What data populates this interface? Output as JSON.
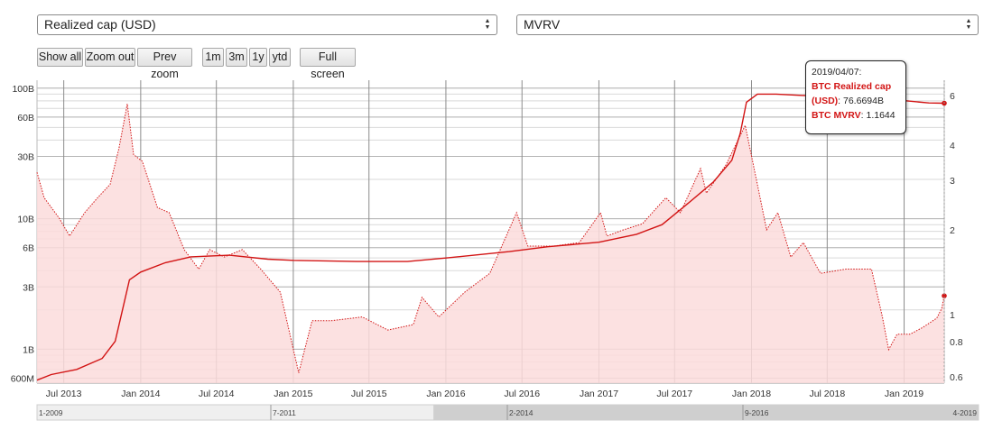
{
  "controls": {
    "left_select": "Realized cap (USD)",
    "right_select": "MVRV",
    "buttons": {
      "show_all": "Show all",
      "zoom_out": "Zoom out",
      "prev_zoom": "Prev zoom",
      "r1m": "1m",
      "r3m": "3m",
      "r1y": "1y",
      "ytd": "ytd",
      "full_screen": "Full screen"
    }
  },
  "tooltip": {
    "date": "2019/04/07:",
    "series1_label": "BTC Realized cap (USD)",
    "series1_value": ": 76.6694B",
    "series2_label": "BTC MVRV",
    "series2_value": ": 1.1644"
  },
  "colors": {
    "line": "#d21414",
    "fill": "#fcdcdc",
    "grid": "#c8c8c8",
    "navigator_selected": "#cfcfcf",
    "navigator_background": "#efefef"
  },
  "chart_data": {
    "type": "line",
    "x_range": [
      "2013-04-28",
      "2019-04-07"
    ],
    "x_ticks": [
      "Jul 2013",
      "Jan 2014",
      "Jul 2014",
      "Jan 2015",
      "Jul 2015",
      "Jan 2016",
      "Jul 2016",
      "Jan 2017",
      "Jul 2017",
      "Jan 2018",
      "Jul 2018",
      "Jan 2019"
    ],
    "x_tick_dates": [
      "2013-07-01",
      "2014-01-01",
      "2014-07-01",
      "2015-01-01",
      "2015-07-01",
      "2016-01-01",
      "2016-07-01",
      "2017-01-01",
      "2017-07-01",
      "2018-01-01",
      "2018-07-01",
      "2019-01-01"
    ],
    "y_left": {
      "scale": "log",
      "ticks": [
        "600M",
        "1B",
        "3B",
        "6B",
        "10B",
        "30B",
        "60B",
        "100B"
      ],
      "tick_values": [
        0.6,
        1,
        3,
        6,
        10,
        30,
        60,
        100
      ],
      "unit": "B",
      "range": [
        0.55,
        115
      ]
    },
    "y_right": {
      "scale": "log",
      "ticks": [
        "0.6",
        "0.8",
        "1",
        "2",
        "3",
        "4",
        "6"
      ],
      "tick_values": [
        0.6,
        0.8,
        1,
        2,
        3,
        4,
        6
      ],
      "range": [
        0.57,
        6.8
      ]
    },
    "series": [
      {
        "name": "BTC Realized cap (USD)",
        "axis": "left",
        "style": "solid",
        "x": [
          "2013-04-28",
          "2013-06-01",
          "2013-08-01",
          "2013-10-01",
          "2013-11-01",
          "2013-11-20",
          "2013-12-05",
          "2014-01-01",
          "2014-03-01",
          "2014-05-01",
          "2014-08-01",
          "2014-11-01",
          "2015-01-01",
          "2015-06-01",
          "2015-10-01",
          "2016-01-01",
          "2016-06-01",
          "2016-09-01",
          "2017-01-01",
          "2017-04-01",
          "2017-06-01",
          "2017-08-01",
          "2017-10-01",
          "2017-11-15",
          "2017-12-05",
          "2017-12-20",
          "2018-01-15",
          "2018-03-01",
          "2018-06-01",
          "2018-09-01",
          "2018-12-01",
          "2019-03-01",
          "2019-04-07"
        ],
        "values": [
          0.58,
          0.64,
          0.7,
          0.85,
          1.15,
          2.1,
          3.4,
          3.9,
          4.6,
          5.1,
          5.25,
          4.9,
          4.8,
          4.7,
          4.7,
          5.0,
          5.6,
          6.1,
          6.6,
          7.6,
          9.0,
          13,
          19,
          28,
          45,
          78,
          90,
          90,
          87,
          86,
          82,
          77,
          76.67
        ]
      },
      {
        "name": "BTC MVRV",
        "axis": "right",
        "style": "dotted-filled",
        "x": [
          "2013-04-28",
          "2013-05-15",
          "2013-06-20",
          "2013-07-15",
          "2013-08-20",
          "2013-09-20",
          "2013-10-20",
          "2013-11-10",
          "2013-11-30",
          "2013-12-15",
          "2014-01-05",
          "2014-02-10",
          "2014-03-10",
          "2014-04-15",
          "2014-05-20",
          "2014-06-15",
          "2014-07-20",
          "2014-09-01",
          "2014-10-15",
          "2014-12-01",
          "2015-01-14",
          "2015-02-15",
          "2015-04-01",
          "2015-06-15",
          "2015-08-15",
          "2015-10-15",
          "2015-11-05",
          "2015-12-15",
          "2016-02-15",
          "2016-04-15",
          "2016-06-18",
          "2016-07-15",
          "2016-09-15",
          "2016-11-15",
          "2017-01-05",
          "2017-01-20",
          "2017-03-01",
          "2017-04-15",
          "2017-06-10",
          "2017-07-15",
          "2017-09-01",
          "2017-09-15",
          "2017-11-01",
          "2017-12-17",
          "2018-01-15",
          "2018-02-06",
          "2018-03-05",
          "2018-04-05",
          "2018-05-05",
          "2018-06-15",
          "2018-08-15",
          "2018-10-15",
          "2018-11-10",
          "2018-11-25",
          "2018-12-15",
          "2019-01-15",
          "2019-02-15",
          "2019-03-20",
          "2019-04-01",
          "2019-04-07"
        ],
        "values": [
          3.2,
          2.6,
          2.2,
          1.9,
          2.3,
          2.6,
          2.9,
          3.9,
          5.6,
          3.7,
          3.5,
          2.4,
          2.3,
          1.7,
          1.45,
          1.7,
          1.6,
          1.7,
          1.45,
          1.2,
          0.62,
          0.95,
          0.95,
          0.98,
          0.88,
          0.92,
          1.15,
          0.98,
          1.2,
          1.4,
          2.3,
          1.75,
          1.75,
          1.8,
          2.3,
          1.9,
          2.0,
          2.1,
          2.6,
          2.3,
          3.3,
          2.7,
          3.4,
          4.7,
          2.9,
          2.0,
          2.3,
          1.6,
          1.8,
          1.4,
          1.45,
          1.45,
          0.98,
          0.75,
          0.85,
          0.85,
          0.9,
          0.97,
          1.05,
          1.1644
        ]
      }
    ],
    "navigator": {
      "labels": [
        "1-2009",
        "7-2011",
        "2-2014",
        "9-2016",
        "4-2019"
      ],
      "selected_range": [
        "2013-04-28",
        "2019-04-07"
      ]
    }
  }
}
